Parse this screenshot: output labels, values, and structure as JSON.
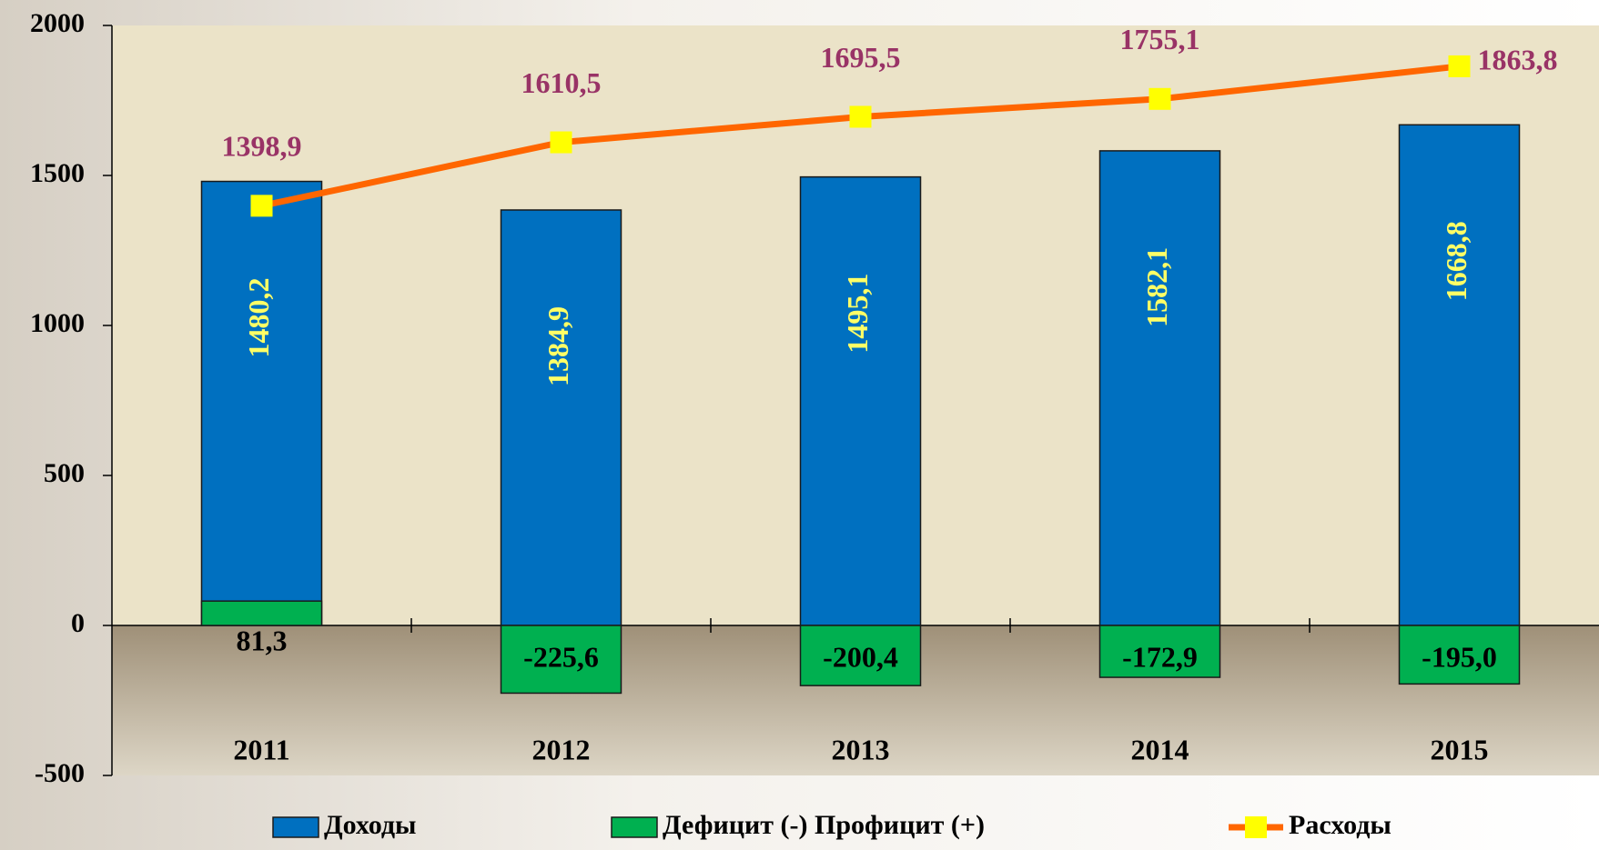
{
  "chart_data": {
    "type": "bar",
    "categories": [
      "2011",
      "2012",
      "2013",
      "2014",
      "2015"
    ],
    "series": [
      {
        "name": "Доходы",
        "type": "bar",
        "color": "#0070c0",
        "values": [
          1480.2,
          1384.9,
          1495.1,
          1582.1,
          1668.8
        ],
        "value_labels": [
          "1480,2",
          "1384,9",
          "1495,1",
          "1582,1",
          "1668,8"
        ]
      },
      {
        "name": "Дефицит (-) Профицит (+)",
        "type": "bar",
        "color": "#00b050",
        "values": [
          81.3,
          -225.6,
          -200.4,
          -172.9,
          -195.0
        ],
        "value_labels": [
          "81,3",
          "-225,6",
          "-200,4",
          "-172,9",
          "-195,0"
        ]
      },
      {
        "name": "Расходы",
        "type": "line",
        "color": "#ff6600",
        "marker_color": "#ffff00",
        "values": [
          1398.9,
          1610.5,
          1695.5,
          1755.1,
          1863.8
        ],
        "value_labels": [
          "1398,9",
          "1610,5",
          "1695,5",
          "1755,1",
          "1863,8"
        ]
      }
    ],
    "ylim": [
      -500,
      2000
    ],
    "yticks": [
      -500,
      0,
      500,
      1000,
      1500,
      2000
    ]
  }
}
